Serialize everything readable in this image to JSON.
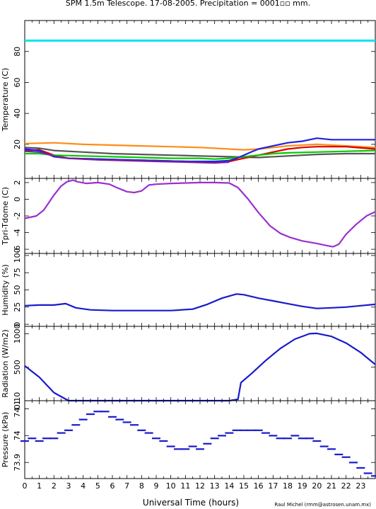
{
  "title": "SPM 1.5m Telescope. 17-08-2005. Precipitation = 0001▫▫ mm.",
  "credit": "Raul Michel (rmm@astrosen.unam.mx)",
  "xlabel": "Universal Time (hours)",
  "chart_data": [
    {
      "type": "line",
      "ylabel": "Temperature (C)",
      "ylim": [
        -2,
        100
      ],
      "yticks": [
        "20",
        "40",
        "60",
        "80"
      ],
      "xlim": [
        0,
        24
      ],
      "xticks": [
        "0",
        "1",
        "2",
        "3",
        "4",
        "5",
        "6",
        "7",
        "8",
        "9",
        "10",
        "11",
        "12",
        "13",
        "14",
        "15",
        "16",
        "17",
        "18",
        "19",
        "20",
        "21",
        "22",
        "23"
      ],
      "series": [
        {
          "color": "#00e5ee",
          "x": [
            0,
            24
          ],
          "y": [
            87,
            87
          ]
        },
        {
          "color": "#ff8c1a",
          "x": [
            0,
            2,
            4,
            6,
            8,
            10,
            12,
            14,
            15,
            16,
            17,
            18,
            19,
            20,
            22,
            24
          ],
          "y": [
            20.5,
            21,
            20,
            19.5,
            19,
            18.5,
            18,
            17,
            16.5,
            17,
            18,
            19,
            19.5,
            20,
            19,
            18
          ]
        },
        {
          "color": "#555555",
          "x": [
            0,
            1,
            2,
            4,
            6,
            8,
            10,
            12,
            14,
            16,
            18,
            20,
            22,
            24
          ],
          "y": [
            18,
            17.5,
            16,
            15,
            14,
            13.5,
            13,
            12.5,
            12,
            11.5,
            12.5,
            13.5,
            14,
            14
          ]
        },
        {
          "color": "#dd0000",
          "x": [
            0,
            1,
            2,
            3,
            5,
            7,
            9,
            11,
            13,
            14,
            15,
            16,
            17,
            18,
            19,
            20,
            22,
            24
          ],
          "y": [
            16,
            16.5,
            13,
            11,
            10.5,
            10,
            9.5,
            9,
            8.5,
            9,
            11,
            13,
            15,
            17,
            18,
            18.5,
            18.5,
            17
          ]
        },
        {
          "color": "#00cc00",
          "x": [
            0,
            1,
            2,
            4,
            6,
            8,
            10,
            12,
            13,
            14,
            15,
            16,
            17,
            18,
            20,
            22,
            24
          ],
          "y": [
            14,
            14,
            13,
            12.5,
            12,
            11.5,
            11,
            11,
            10.5,
            11,
            12,
            13,
            14,
            14.5,
            15,
            15.5,
            16
          ]
        },
        {
          "color": "#2222dd",
          "x": [
            0,
            1,
            1.5,
            2,
            3,
            5,
            7,
            9,
            11,
            13,
            14,
            14.5,
            15,
            15.5,
            16,
            17,
            18,
            19,
            20,
            21,
            22,
            24
          ],
          "y": [
            17,
            16,
            14,
            12,
            11,
            10.5,
            10,
            9.5,
            9,
            9,
            9.5,
            11,
            13,
            15,
            17,
            19,
            21,
            22,
            24,
            23,
            23,
            23
          ]
        },
        {
          "color": "#7a1fa0",
          "x": [
            0,
            1,
            2,
            3,
            5,
            7,
            9,
            11,
            13,
            14
          ],
          "y": [
            15.5,
            15,
            12.5,
            11,
            10,
            9.5,
            9,
            8.5,
            8,
            8.5
          ]
        }
      ]
    },
    {
      "type": "line",
      "ylabel": "Tpri-Tdome (C)",
      "ylim": [
        -6.5,
        2.5
      ],
      "yticks": [
        "-6",
        "-4",
        "-2",
        "0",
        "2"
      ],
      "xlim": [
        0,
        24
      ],
      "series": [
        {
          "color": "#9a30d0",
          "x": [
            0,
            0.8,
            1.3,
            2,
            2.5,
            2.9,
            3.3,
            3.6,
            4.2,
            5,
            5.8,
            6.3,
            7,
            7.5,
            8,
            8.5,
            9,
            10,
            11,
            12,
            13,
            14,
            14.6,
            15.3,
            16,
            16.8,
            17.5,
            18.2,
            19,
            20,
            20.8,
            21.1,
            21.5,
            22,
            22.7,
            23.4,
            24
          ],
          "y": [
            -2.3,
            -2,
            -1.3,
            0.5,
            1.6,
            2.1,
            2.3,
            2.1,
            1.9,
            2,
            1.8,
            1.4,
            0.9,
            0.8,
            1.0,
            1.7,
            1.8,
            1.9,
            1.95,
            2,
            2,
            1.95,
            1.4,
            0,
            -1.6,
            -3.2,
            -4.1,
            -4.6,
            -5,
            -5.3,
            -5.6,
            -5.7,
            -5.4,
            -4.2,
            -3,
            -2,
            -1.5
          ]
        }
      ]
    },
    {
      "type": "line",
      "ylabel": "Humidity (%)",
      "ylim": [
        -3,
        103
      ],
      "yticks": [
        "0",
        "25",
        "50",
        "75",
        "100"
      ],
      "xlim": [
        0,
        24
      ],
      "series": [
        {
          "color": "#1a1acc",
          "x": [
            0,
            1,
            2,
            2.8,
            3.5,
            4.5,
            6,
            8,
            10,
            11.5,
            12.5,
            13.5,
            14.5,
            15,
            16,
            17,
            18,
            19,
            20,
            21,
            22,
            23,
            24
          ],
          "y": [
            27,
            28,
            28,
            30,
            24,
            21,
            20,
            20,
            20,
            22,
            29,
            38,
            44,
            43,
            38,
            34,
            30,
            26,
            23,
            24,
            25,
            27,
            29
          ]
        }
      ]
    },
    {
      "type": "line",
      "ylabel": "Radiation (W/m2)",
      "ylim": [
        0,
        1110
      ],
      "yticks": [
        "0.10",
        "500",
        "1000"
      ],
      "xlim": [
        0,
        24
      ],
      "series": [
        {
          "color": "#1a1acc",
          "x": [
            0,
            1,
            2,
            3,
            6,
            9,
            12,
            14,
            14.6,
            14.8,
            15.5,
            16.5,
            17.5,
            18.5,
            19.5,
            20,
            21,
            22,
            23,
            24
          ],
          "y": [
            520,
            350,
            120,
            0.1,
            0.1,
            0.1,
            0.1,
            0.1,
            20,
            270,
            400,
            600,
            780,
            920,
            1000,
            1005,
            960,
            860,
            720,
            540
          ]
        }
      ]
    },
    {
      "type": "scatter",
      "ylabel": "Pressure (kPa)",
      "ylim": [
        73.84,
        74.13
      ],
      "yticks": [
        "73.9",
        "74",
        "74.1"
      ],
      "xlim": [
        0,
        24
      ],
      "series": [
        {
          "color": "#1a1acc",
          "x": [
            0,
            0.5,
            1,
            1.5,
            2,
            2.5,
            3,
            3.5,
            4,
            4.5,
            5,
            5.5,
            6,
            6.5,
            7,
            7.5,
            8,
            8.5,
            9,
            9.5,
            10,
            10.5,
            11,
            11.5,
            12,
            12.5,
            13,
            13.5,
            14,
            14.5,
            15,
            15.5,
            16,
            16.5,
            17,
            17.5,
            18,
            18.5,
            19,
            19.5,
            20,
            20.5,
            21,
            21.5,
            22,
            22.5,
            23,
            23.5,
            24
          ],
          "y": [
            73.98,
            73.99,
            73.98,
            73.99,
            73.99,
            74.01,
            74.02,
            74.04,
            74.06,
            74.08,
            74.09,
            74.09,
            74.07,
            74.06,
            74.05,
            74.04,
            74.02,
            74.01,
            73.99,
            73.98,
            73.96,
            73.95,
            73.95,
            73.96,
            73.95,
            73.97,
            73.99,
            74.0,
            74.01,
            74.02,
            74.02,
            74.02,
            74.02,
            74.01,
            74.0,
            73.99,
            73.99,
            74.0,
            73.99,
            73.99,
            73.98,
            73.96,
            73.95,
            73.93,
            73.92,
            73.9,
            73.88,
            73.86,
            73.85
          ]
        }
      ]
    }
  ]
}
